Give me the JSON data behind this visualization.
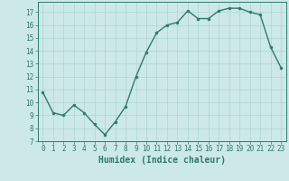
{
  "x": [
    0,
    1,
    2,
    3,
    4,
    5,
    6,
    7,
    8,
    9,
    10,
    11,
    12,
    13,
    14,
    15,
    16,
    17,
    18,
    19,
    20,
    21,
    22,
    23
  ],
  "y": [
    10.8,
    9.2,
    9.0,
    9.8,
    9.2,
    8.3,
    7.5,
    8.5,
    9.7,
    12.0,
    13.9,
    15.4,
    16.0,
    16.2,
    17.1,
    16.5,
    16.5,
    17.1,
    17.3,
    17.3,
    17.0,
    16.8,
    14.3,
    12.7
  ],
  "xlabel": "Humidex (Indice chaleur)",
  "xlim": [
    -0.5,
    23.5
  ],
  "ylim": [
    7,
    17.8
  ],
  "yticks": [
    7,
    8,
    9,
    10,
    11,
    12,
    13,
    14,
    15,
    16,
    17
  ],
  "xticks": [
    0,
    1,
    2,
    3,
    4,
    5,
    6,
    7,
    8,
    9,
    10,
    11,
    12,
    13,
    14,
    15,
    16,
    17,
    18,
    19,
    20,
    21,
    22,
    23
  ],
  "line_color": "#2d7a6e",
  "marker_color": "#2d7a6e",
  "bg_color": "#cce8e8",
  "grid_color": "#aed4d4",
  "axis_color": "#2d7a6e",
  "tick_label_color": "#2d7a6e",
  "xlabel_color": "#2d7a6e",
  "font_size_ticks": 5.5,
  "font_size_xlabel": 7.0
}
